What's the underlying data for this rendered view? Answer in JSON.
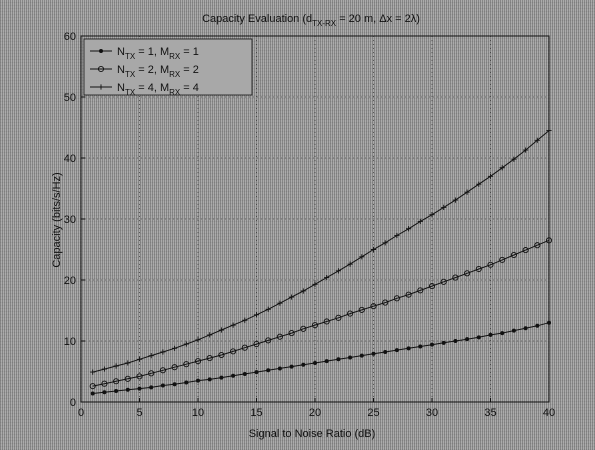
{
  "chart_data": {
    "type": "line",
    "title": "Capacity Evaluation (d",
    "title_sub1": "TX-RX",
    "title_mid": " = 20 m, Δx = 2λ)",
    "xlabel": "Signal to Noise Ratio (dB)",
    "ylabel": "Capacity (bits/s/Hz)",
    "xlim": [
      0,
      40
    ],
    "ylim": [
      0,
      60
    ],
    "xticks": [
      0,
      5,
      10,
      15,
      20,
      25,
      30,
      35,
      40
    ],
    "yticks": [
      0,
      10,
      20,
      30,
      40,
      50,
      60
    ],
    "grid": true,
    "legend_position": "top-left",
    "x": [
      1,
      2,
      3,
      4,
      5,
      6,
      7,
      8,
      9,
      10,
      11,
      12,
      13,
      14,
      15,
      16,
      17,
      18,
      19,
      20,
      21,
      22,
      23,
      24,
      25,
      26,
      27,
      28,
      29,
      30,
      31,
      32,
      33,
      34,
      35,
      36,
      37,
      38,
      39,
      40
    ],
    "series": [
      {
        "name": "N_TX = 1, M_RX = 1",
        "legend_parts": [
          "N",
          "TX",
          " = 1, M",
          "RX",
          " = 1"
        ],
        "marker": "dot",
        "values": [
          1.4,
          1.6,
          1.8,
          2.0,
          2.2,
          2.4,
          2.7,
          2.9,
          3.2,
          3.5,
          3.7,
          4.0,
          4.3,
          4.6,
          4.9,
          5.2,
          5.5,
          5.8,
          6.1,
          6.4,
          6.7,
          7.0,
          7.3,
          7.6,
          7.9,
          8.2,
          8.5,
          8.8,
          9.1,
          9.4,
          9.7,
          10.0,
          10.3,
          10.6,
          11.0,
          11.3,
          11.7,
          12.1,
          12.5,
          13.0
        ]
      },
      {
        "name": "N_TX = 2, M_RX = 2",
        "legend_parts": [
          "N",
          "TX",
          " = 2, M",
          "RX",
          " = 2"
        ],
        "marker": "circle",
        "values": [
          2.6,
          3.0,
          3.4,
          3.8,
          4.2,
          4.7,
          5.2,
          5.7,
          6.2,
          6.7,
          7.2,
          7.7,
          8.3,
          8.9,
          9.5,
          10.1,
          10.7,
          11.3,
          12.0,
          12.6,
          13.2,
          13.8,
          14.5,
          15.1,
          15.7,
          16.3,
          17.0,
          17.6,
          18.3,
          19.0,
          19.7,
          20.4,
          21.1,
          21.8,
          22.5,
          23.3,
          24.1,
          24.9,
          25.7,
          26.5
        ]
      },
      {
        "name": "N_TX = 4, M_RX = 4",
        "legend_parts": [
          "N",
          "TX",
          " = 4, M",
          "RX",
          " = 4"
        ],
        "marker": "plus",
        "values": [
          4.9,
          5.4,
          5.9,
          6.4,
          7.0,
          7.6,
          8.2,
          8.8,
          9.5,
          10.2,
          11.0,
          11.8,
          12.6,
          13.4,
          14.3,
          15.2,
          16.2,
          17.2,
          18.2,
          19.3,
          20.4,
          21.5,
          22.6,
          23.8,
          25.0,
          26.1,
          27.3,
          28.4,
          29.6,
          30.7,
          31.9,
          33.1,
          34.4,
          35.7,
          37.0,
          38.4,
          39.8,
          41.3,
          42.9,
          44.5
        ]
      }
    ]
  }
}
